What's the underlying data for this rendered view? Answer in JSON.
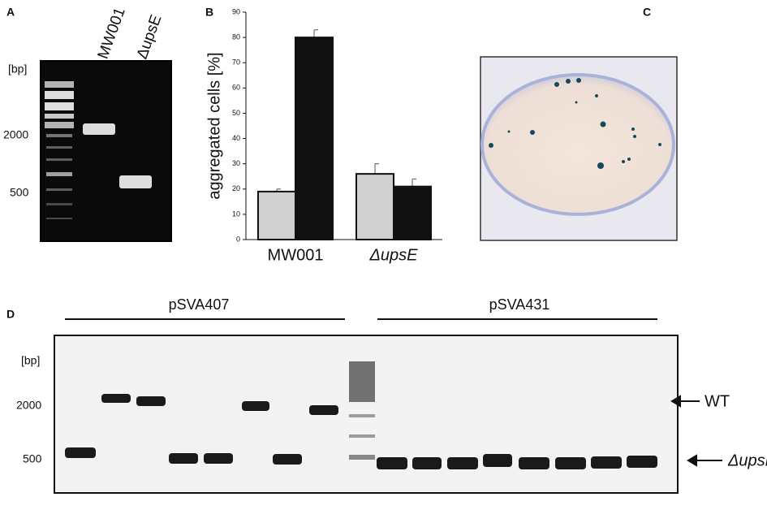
{
  "panel_a": {
    "letter": "A",
    "lanes": [
      "MW001",
      "ΔupsE"
    ],
    "unit": "[bp]",
    "markers": [
      "2000",
      "500"
    ]
  },
  "chart_data": {
    "type": "bar",
    "letter": "B",
    "ylabel": "aggregated cells [%]",
    "categories": [
      "MW001",
      "ΔupsE"
    ],
    "series": [
      {
        "color": "#d0d0d0",
        "values": [
          19,
          26
        ],
        "errors": [
          1,
          4
        ]
      },
      {
        "color": "#111111",
        "values": [
          80,
          21
        ],
        "errors": [
          3,
          3
        ]
      }
    ],
    "ylim": [
      0,
      90
    ],
    "yticks": [
      0,
      10,
      20,
      30,
      40,
      50,
      60,
      70,
      80,
      90
    ],
    "grid": false
  },
  "panel_c": {
    "letter": "C"
  },
  "panel_d": {
    "letter": "D",
    "groups": [
      "pSVA407",
      "pSVA431"
    ],
    "unit": "[bp]",
    "markers": [
      "2000",
      "500"
    ],
    "arrows": [
      "WT",
      "ΔupsE"
    ]
  }
}
